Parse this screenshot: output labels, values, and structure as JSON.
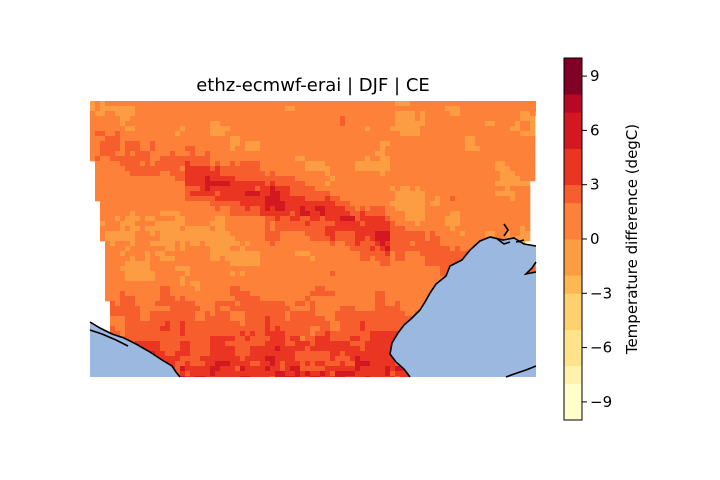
{
  "chart_data": {
    "type": "heatmap",
    "title": "ethz-ecmwf-erai | DJF | CE",
    "colorbar": {
      "label": "Temperature difference (degC)",
      "range": [
        -10,
        10
      ],
      "ticks": [
        9,
        6,
        3,
        0,
        -3,
        -6,
        -9
      ],
      "tick_labels": [
        "9",
        "6",
        "3",
        "0",
        "−3",
        "−6",
        "−9"
      ],
      "colormap": "YlOrRd",
      "colors": [
        "#ffffcc",
        "#fff2ae",
        "#ffe38b",
        "#fed06e",
        "#feb751",
        "#fd9d43",
        "#fd8138",
        "#f65e2d",
        "#ea3522",
        "#d41821",
        "#b80826",
        "#800026"
      ]
    },
    "grid": false,
    "regions": {
      "land_dominant_value": 0.5,
      "sea_color": "#9ab8e0",
      "coastline_color": "#000000"
    }
  }
}
